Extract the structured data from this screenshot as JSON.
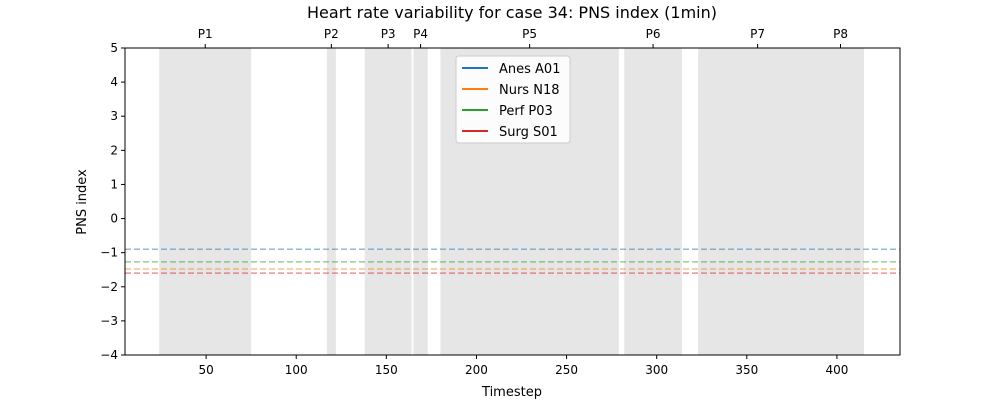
{
  "chart_data": {
    "type": "line",
    "title": "Heart rate variability for case 34: PNS index (1min)",
    "xlabel": "Timestep",
    "ylabel": "PNS index",
    "xlim": [
      5,
      435
    ],
    "ylim": [
      -4,
      5
    ],
    "x_ticks": [
      50,
      100,
      150,
      200,
      250,
      300,
      350,
      400
    ],
    "y_ticks": [
      -4,
      -3,
      -2,
      -1,
      0,
      1,
      2,
      3,
      4,
      5
    ],
    "y_tick_labels": [
      "−4",
      "−3",
      "−2",
      "−1",
      "0",
      "1",
      "2",
      "3",
      "4",
      "5"
    ],
    "phases": [
      {
        "label": "P1",
        "start": 24,
        "end": 75
      },
      {
        "label": "P2",
        "start": 117,
        "end": 122
      },
      {
        "label": "P3",
        "start": 138,
        "end": 164
      },
      {
        "label": "P4",
        "start": 165,
        "end": 173
      },
      {
        "label": "P5",
        "start": 180,
        "end": 279
      },
      {
        "label": "P6",
        "start": 282,
        "end": 314
      },
      {
        "label": "P7",
        "start": 323,
        "end": 389
      },
      {
        "label": "P8",
        "start": 389,
        "end": 415
      }
    ],
    "series": [
      {
        "name": "Anes A01",
        "color": "#1f77b4",
        "baseline": -0.9
      },
      {
        "name": "Nurs N18",
        "color": "#ff7f0e",
        "baseline": -1.48
      },
      {
        "name": "Perf P03",
        "color": "#2ca02c",
        "baseline": -1.27
      },
      {
        "name": "Surg S01",
        "color": "#d62728",
        "baseline": -1.6
      }
    ],
    "legend_position": "top-center",
    "grid": false
  }
}
